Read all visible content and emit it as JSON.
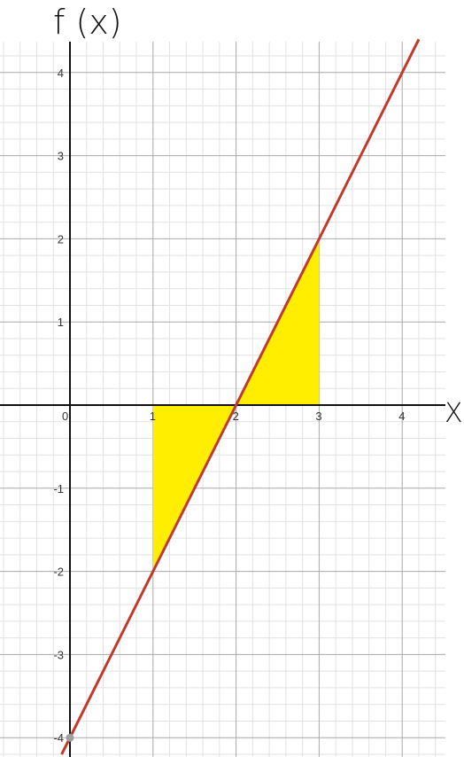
{
  "chart_data": {
    "type": "line",
    "xlim": [
      -0.85,
      4.6
    ],
    "ylim": [
      -4.2,
      4.35
    ],
    "major_grid": true,
    "minor_grid": true,
    "minor_step": 0.2,
    "x_tick_labels": [
      {
        "value": 0,
        "label": "0"
      },
      {
        "value": 1,
        "label": "1"
      },
      {
        "value": 2,
        "label": "2"
      },
      {
        "value": 3,
        "label": "3"
      },
      {
        "value": 4,
        "label": "4"
      }
    ],
    "y_tick_labels": [
      {
        "value": -4,
        "label": "-4"
      },
      {
        "value": -3,
        "label": "-3"
      },
      {
        "value": -2,
        "label": "-2"
      },
      {
        "value": -1,
        "label": "-1"
      },
      {
        "value": 1,
        "label": "1"
      },
      {
        "value": 2,
        "label": "2"
      },
      {
        "value": 3,
        "label": "3"
      },
      {
        "value": 4,
        "label": "4"
      }
    ],
    "xlabel": "X",
    "ylabel": "f (x)",
    "series": [
      {
        "x": [
          -0.1,
          4.2
        ],
        "y": [
          -4.2,
          4.4
        ],
        "color": "#c0392b"
      }
    ],
    "shaded_regions": [
      {
        "points": [
          [
            1,
            0
          ],
          [
            2,
            0
          ],
          [
            1,
            -2
          ]
        ],
        "color": "#ffee00"
      },
      {
        "points": [
          [
            2,
            0
          ],
          [
            3,
            0
          ],
          [
            3,
            2
          ]
        ],
        "color": "#ffee00"
      }
    ],
    "highlight_point": {
      "x": 0,
      "y": -4,
      "color": "#9e9e9e"
    }
  }
}
